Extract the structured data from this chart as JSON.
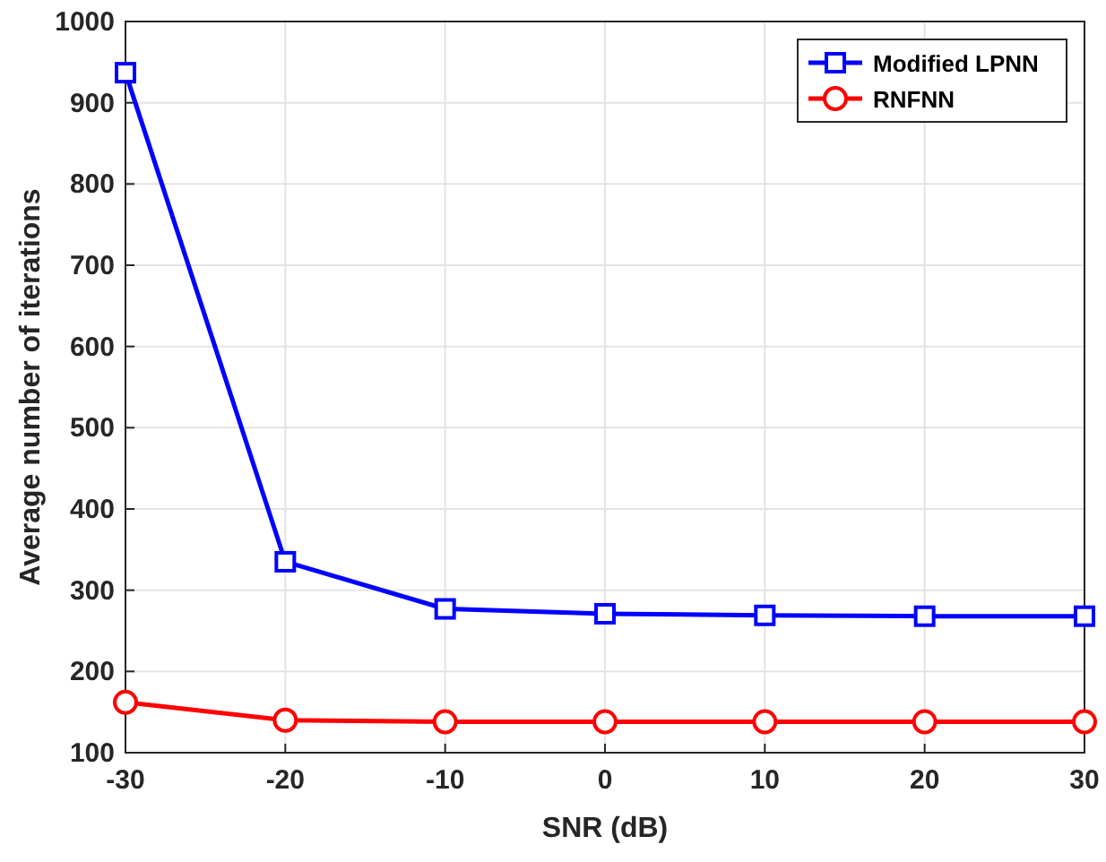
{
  "chart_data": {
    "type": "line",
    "xlabel": "SNR (dB)",
    "ylabel": "Average number of iterations",
    "x": [
      -30,
      -20,
      -10,
      0,
      10,
      20,
      30
    ],
    "series": [
      {
        "name": "Modified LPNN",
        "color": "#0000ff",
        "marker": "square",
        "values": [
          937,
          335,
          277,
          271,
          269,
          268,
          268
        ]
      },
      {
        "name": "RNFNN",
        "color": "#ff0000",
        "marker": "circle",
        "values": [
          162,
          140,
          138,
          138,
          138,
          138,
          138
        ]
      }
    ],
    "xlim": [
      -30,
      30
    ],
    "xticks": [
      -30,
      -20,
      -10,
      0,
      10,
      20,
      30
    ],
    "ylim": [
      100,
      1000
    ],
    "yticks": [
      100,
      200,
      300,
      400,
      500,
      600,
      700,
      800,
      900,
      1000
    ],
    "grid": true,
    "legend": "top right",
    "line_style": "solid"
  }
}
